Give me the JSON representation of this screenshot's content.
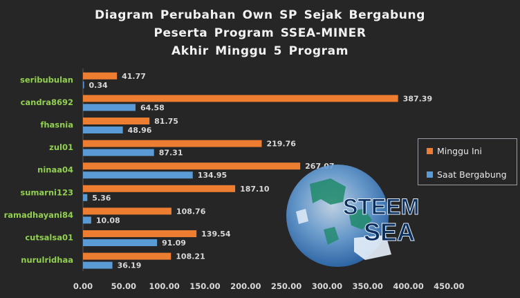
{
  "chart_data": {
    "type": "bar",
    "orientation": "horizontal",
    "title": [
      "Diagram  Perubahan  Own SP Sejak Bergabung",
      "Peserta  Program  SSEA-MINER",
      "Akhir  Minggu  5 Program"
    ],
    "categories": [
      "seribubulan",
      "candra8692",
      "fhasnia",
      "zul01",
      "ninaa04",
      "sumarni123",
      "ramadhayani84",
      "cutsalsa01",
      "nurulridhaa"
    ],
    "series": [
      {
        "name": "Minggu Ini",
        "color": "#ed7d31",
        "values": [
          41.77,
          387.39,
          81.75,
          219.76,
          267.07,
          187.1,
          108.76,
          139.54,
          108.21
        ],
        "labels": [
          "41.77",
          "387.39",
          "81.75",
          "219.76",
          "267.07",
          "187.10",
          "108.76",
          "139.54",
          "108.21"
        ]
      },
      {
        "name": "Saat Bergabung",
        "color": "#5b9bd5",
        "values": [
          0.34,
          64.58,
          48.96,
          87.31,
          134.95,
          5.36,
          10.08,
          91.09,
          36.19
        ],
        "labels": [
          "0.34",
          "64.58",
          "48.96",
          "87.31",
          "134.95",
          "5.36",
          "10.08",
          "91.09",
          "36.19"
        ]
      }
    ],
    "xlim": [
      0,
      450
    ],
    "xticks": [
      "0.00",
      "50.00",
      "100.00",
      "150.00",
      "200.00",
      "250.00",
      "300.00",
      "350.00",
      "400.00",
      "450.00"
    ],
    "grid": false,
    "legend": "right"
  },
  "colors": {
    "background": "#262626",
    "category_label": "#92d050",
    "value_label": "#d9d9d9",
    "axis_label": "#d9d9d9"
  },
  "logo": {
    "line1": "STEEM",
    "line2": "SEA"
  }
}
